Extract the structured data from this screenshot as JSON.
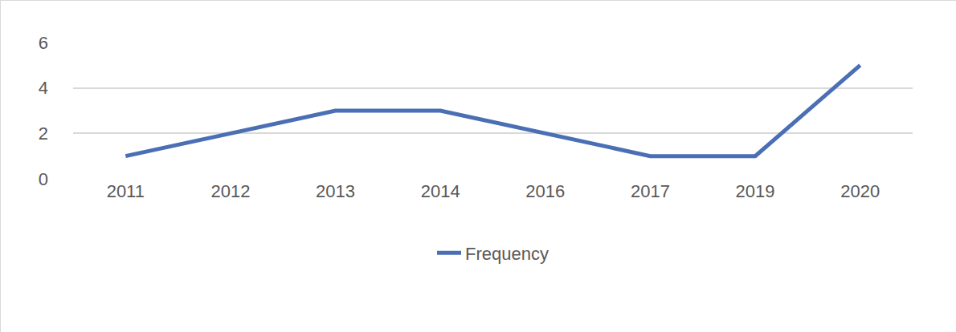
{
  "chart_data": {
    "type": "line",
    "categories": [
      "2011",
      "2012",
      "2013",
      "2014",
      "2016",
      "2017",
      "2019",
      "2020"
    ],
    "series": [
      {
        "name": "Frequency",
        "color": "#4a6fb5",
        "values": [
          1,
          2,
          3,
          3,
          2,
          1,
          1,
          5
        ]
      }
    ],
    "ylim": [
      0,
      6
    ],
    "yticks": [
      0,
      2,
      4,
      6
    ],
    "grid": true,
    "legend": "bottom"
  }
}
